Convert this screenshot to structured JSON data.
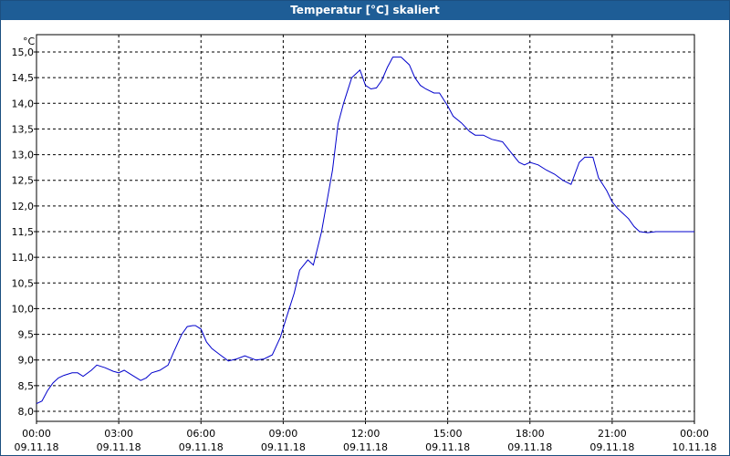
{
  "window": {
    "title": "Temperatur [°C] skaliert"
  },
  "chart_data": {
    "type": "line",
    "title": "Temperatur [°C] skaliert",
    "ylabel": "°C",
    "xlabel": "",
    "ylim": [
      8.0,
      15.0
    ],
    "xlim_hours": [
      0,
      24
    ],
    "grid": true,
    "line_color": "#0000cc",
    "y_ticks": [
      "8,0",
      "8,5",
      "9,0",
      "9,5",
      "10,0",
      "10,5",
      "11,0",
      "11,5",
      "12,0",
      "12,5",
      "13,0",
      "13,5",
      "14,0",
      "14,5",
      "15,0"
    ],
    "x_ticks": [
      {
        "time": "00:00",
        "date": "09.11.18"
      },
      {
        "time": "03:00",
        "date": "09.11.18"
      },
      {
        "time": "06:00",
        "date": "09.11.18"
      },
      {
        "time": "09:00",
        "date": "09.11.18"
      },
      {
        "time": "12:00",
        "date": "09.11.18"
      },
      {
        "time": "15:00",
        "date": "09.11.18"
      },
      {
        "time": "18:00",
        "date": "09.11.18"
      },
      {
        "time": "21:00",
        "date": "09.11.18"
      },
      {
        "time": "00:00",
        "date": "10.11.18"
      }
    ],
    "series": [
      {
        "x_hours": [
          0,
          0.2,
          0.4,
          0.6,
          0.8,
          1.0,
          1.3,
          1.5,
          1.7,
          2.0,
          2.2,
          2.5,
          2.8,
          3.0,
          3.2,
          3.5,
          3.8,
          4.0,
          4.2,
          4.5,
          4.8,
          5.0,
          5.3,
          5.5,
          5.7,
          5.8,
          6.0,
          6.2,
          6.4,
          6.7,
          7.0,
          7.3,
          7.6,
          8.0,
          8.3,
          8.6,
          8.9,
          9.1,
          9.4,
          9.6,
          9.9,
          10.1,
          10.4,
          10.6,
          10.8,
          11.0,
          11.2,
          11.5,
          11.8,
          12.0,
          12.2,
          12.4,
          12.6,
          12.8,
          13.0,
          13.3,
          13.6,
          13.8,
          14.0,
          14.2,
          14.5,
          14.7,
          15.0,
          15.2,
          15.5,
          15.8,
          16.0,
          16.3,
          16.6,
          17.0,
          17.3,
          17.6,
          17.8,
          18.0,
          18.3,
          18.6,
          18.9,
          19.2,
          19.5,
          19.8,
          20.0,
          20.3,
          20.5,
          20.8,
          21.0,
          21.2,
          21.4,
          21.6,
          21.8,
          22.0,
          22.3,
          22.6,
          22.9,
          23.2,
          23.5,
          23.8,
          24.0
        ],
        "values": [
          8.15,
          8.2,
          8.4,
          8.55,
          8.65,
          8.7,
          8.75,
          8.75,
          8.68,
          8.8,
          8.9,
          8.85,
          8.78,
          8.75,
          8.8,
          8.7,
          8.6,
          8.65,
          8.75,
          8.8,
          8.9,
          9.15,
          9.5,
          9.65,
          9.67,
          9.67,
          9.6,
          9.35,
          9.22,
          9.1,
          8.98,
          9.02,
          9.08,
          9.0,
          9.02,
          9.1,
          9.45,
          9.8,
          10.3,
          10.75,
          10.95,
          10.85,
          11.5,
          12.1,
          12.7,
          13.6,
          14.0,
          14.5,
          14.65,
          14.35,
          14.28,
          14.3,
          14.45,
          14.7,
          14.9,
          14.9,
          14.75,
          14.5,
          14.35,
          14.28,
          14.2,
          14.2,
          13.95,
          13.75,
          13.62,
          13.45,
          13.38,
          13.38,
          13.3,
          13.25,
          13.05,
          12.85,
          12.8,
          12.85,
          12.8,
          12.7,
          12.62,
          12.5,
          12.42,
          12.85,
          12.95,
          12.95,
          12.55,
          12.3,
          12.08,
          11.95,
          11.85,
          11.75,
          11.6,
          11.5,
          11.48,
          11.5,
          11.5,
          11.5,
          11.5,
          11.5,
          11.5
        ]
      }
    ]
  }
}
